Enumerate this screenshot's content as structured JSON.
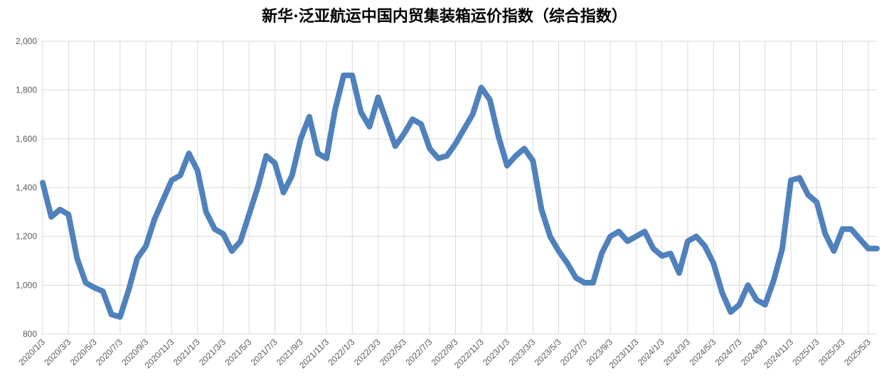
{
  "chart_data": {
    "type": "line",
    "title": "新华·泛亚航运中国内贸集装箱运价指数（综合指数）",
    "categories": [
      "2020/1/3",
      null,
      null,
      "2020/3/3",
      null,
      null,
      "2020/5/3",
      null,
      null,
      "2020/7/3",
      null,
      null,
      "2020/9/3",
      null,
      null,
      "2020/11/3",
      null,
      null,
      "2021/1/3",
      null,
      null,
      "2021/3/3",
      null,
      null,
      "2021/5/3",
      null,
      null,
      "2021/7/3",
      null,
      null,
      "2021/9/3",
      null,
      null,
      "2021/11/3",
      null,
      null,
      "2022/1/3",
      null,
      null,
      "2022/3/3",
      null,
      null,
      "2022/5/3",
      null,
      null,
      "2022/7/3",
      null,
      null,
      "2022/9/3",
      null,
      null,
      "2022/11/3",
      null,
      null,
      "2023/1/3",
      null,
      null,
      "2023/3/3",
      null,
      null,
      "2023/5/3",
      null,
      null,
      "2023/7/3",
      null,
      null,
      "2023/9/3",
      null,
      null,
      "2023/11/3",
      null,
      null,
      "2024/1/3",
      null,
      null,
      "2024/3/3",
      null,
      null,
      "2024/5/3",
      null,
      null,
      "2024/7/3",
      null,
      null,
      "2024/9/3",
      null,
      null,
      "2024/11/3",
      null,
      null,
      "2025/1/3",
      null,
      null,
      "2025/3/3",
      null,
      null,
      "2025/5/3",
      null
    ],
    "series": [
      {
        "name": "综合指数",
        "color": "#4f81bd",
        "values": [
          1420,
          1280,
          1310,
          1290,
          1110,
          1010,
          990,
          975,
          880,
          870,
          980,
          1110,
          1160,
          1270,
          1350,
          1430,
          1450,
          1540,
          1470,
          1300,
          1230,
          1210,
          1140,
          1180,
          1290,
          1400,
          1530,
          1500,
          1380,
          1450,
          1600,
          1690,
          1540,
          1520,
          1720,
          1860,
          1860,
          1710,
          1650,
          1770,
          1670,
          1570,
          1620,
          1680,
          1660,
          1560,
          1520,
          1530,
          1580,
          1640,
          1700,
          1810,
          1760,
          1610,
          1490,
          1530,
          1560,
          1510,
          1310,
          1200,
          1140,
          1090,
          1030,
          1010,
          1010,
          1130,
          1200,
          1220,
          1180,
          1200,
          1220,
          1150,
          1120,
          1130,
          1050,
          1180,
          1200,
          1160,
          1090,
          970,
          890,
          920,
          1000,
          940,
          920,
          1020,
          1150,
          1430,
          1440,
          1370,
          1340,
          1210,
          1140,
          1230,
          1230,
          1190,
          1150,
          1150
        ]
      }
    ],
    "ylim": [
      800,
      2000
    ],
    "yticks": [
      800,
      {
        "value": 1000,
        "label": "1,000"
      },
      {
        "value": 1200,
        "label": "1,200"
      },
      {
        "value": 1400,
        "label": "1,400"
      },
      {
        "value": 1600,
        "label": "1,600"
      },
      {
        "value": 1800,
        "label": "1,800"
      },
      {
        "value": 2000,
        "label": "2,000"
      }
    ],
    "grid": true
  }
}
